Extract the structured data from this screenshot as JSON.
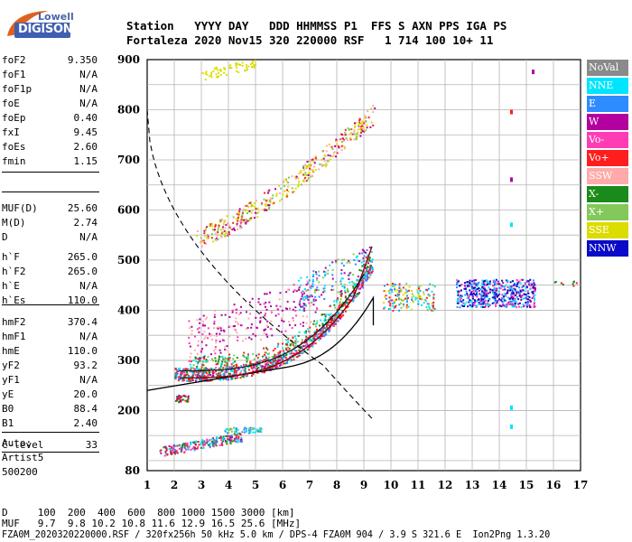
{
  "logo": {
    "top": "Lowell",
    "bottom": "DIGISONDE"
  },
  "header": {
    "line1": "Station   YYYY DAY   DDD HHMMSS P1  FFS S AXN PPS IGA PS",
    "line2": "Fortaleza 2020 Nov15 320 220000 RSF   1 714 100 10+ 11"
  },
  "params": [
    {
      "k": "foF2",
      "v": "9.350"
    },
    {
      "k": "foF1",
      "v": "N/A"
    },
    {
      "k": "foF1p",
      "v": "N/A"
    },
    {
      "k": "foE",
      "v": "N/A"
    },
    {
      "k": "foEp",
      "v": "0.40"
    },
    {
      "k": "fxI",
      "v": "9.45"
    },
    {
      "k": "foEs",
      "v": "2.60"
    },
    {
      "k": "fmin",
      "v": "1.15"
    },
    {
      "k": "MUF(D)",
      "v": "25.60"
    },
    {
      "k": "M(D)",
      "v": "2.74"
    },
    {
      "k": "D",
      "v": "N/A"
    },
    {
      "k": "h`F",
      "v": "265.0"
    },
    {
      "k": "h`F2",
      "v": "265.0"
    },
    {
      "k": "h`E",
      "v": "N/A"
    },
    {
      "k": "h`Es",
      "v": "110.0"
    },
    {
      "k": "hmF2",
      "v": "370.4"
    },
    {
      "k": "hmF1",
      "v": "N/A"
    },
    {
      "k": "hmE",
      "v": "110.0"
    },
    {
      "k": "yF2",
      "v": "93.2"
    },
    {
      "k": "yF1",
      "v": "N/A"
    },
    {
      "k": "yE",
      "v": "20.0"
    },
    {
      "k": "B0",
      "v": "88.4"
    },
    {
      "k": "B1",
      "v": "2.40"
    },
    {
      "k": "C-level",
      "v": "33"
    }
  ],
  "scaler": {
    "line1": "Auto:",
    "line2": "Artist5",
    "line3": "500200"
  },
  "axes": {
    "y_ticks": [
      "900",
      "800",
      "700",
      "600",
      "500",
      "400",
      "300",
      "200",
      "80"
    ],
    "x_ticks": [
      "1",
      "2",
      "3",
      "4",
      "5",
      "6",
      "7",
      "8",
      "9",
      "10",
      "11",
      "12",
      "13",
      "14",
      "15",
      "16",
      "17"
    ]
  },
  "legend": [
    {
      "label": "NoVal",
      "color": "#8a8a8a"
    },
    {
      "label": "NNE",
      "color": "#00e5ff"
    },
    {
      "label": "E",
      "color": "#2d8cff"
    },
    {
      "label": "W",
      "color": "#b3009f"
    },
    {
      "label": "Vo-",
      "color": "#ff3cb4"
    },
    {
      "label": "Vo+",
      "color": "#ff1e1e"
    },
    {
      "label": "SSW",
      "color": "#ffaaaa"
    },
    {
      "label": "X-",
      "color": "#1a8a1a"
    },
    {
      "label": "X+",
      "color": "#82c85a"
    },
    {
      "label": "SSE",
      "color": "#dcdc00"
    },
    {
      "label": "NNW",
      "color": "#0a0ac8"
    }
  ],
  "footer": {
    "line1": "D     100  200  400  600  800 1000 1500 3000 [km]",
    "line2": "MUF   9.7  9.8 10.2 10.8 11.6 12.9 16.5 25.6 [MHz]",
    "line3": "FZA0M_2020320220000.RSF / 320fx256h 50 kHz 5.0 km / DPS-4 FZA0M 904 / 3.9 S 321.6 E  Ion2Png 1.3.20"
  }
}
